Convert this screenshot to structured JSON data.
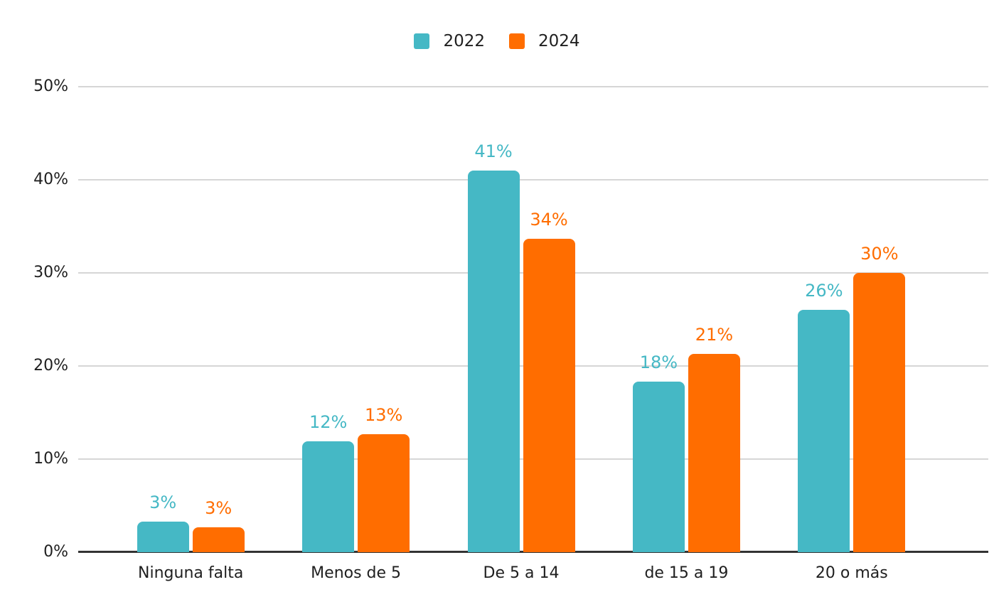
{
  "chart_data": {
    "type": "bar",
    "title": "",
    "xlabel": "",
    "ylabel": "",
    "categories": [
      "Ninguna falta",
      "Menos de 5",
      "De 5 a 14",
      "de 15 a 19",
      "20 o más"
    ],
    "series": [
      {
        "name": "2022",
        "color": "#45B8C5",
        "values": [
          3.3,
          11.9,
          41,
          18.3,
          26
        ],
        "labels": [
          "3%",
          "12%",
          "41%",
          "18%",
          "26%"
        ]
      },
      {
        "name": "2024",
        "color": "#FF6D00",
        "values": [
          2.7,
          12.7,
          33.7,
          21.3,
          30
        ],
        "labels": [
          "3%",
          "13%",
          "34%",
          "21%",
          "30%"
        ]
      }
    ],
    "ylim": [
      0,
      50
    ],
    "yticks": [
      {
        "value": 0,
        "label": "0%"
      },
      {
        "value": 10,
        "label": "10%"
      },
      {
        "value": 20,
        "label": "20%"
      },
      {
        "value": 30,
        "label": "30%"
      },
      {
        "value": 40,
        "label": "40%"
      },
      {
        "value": 50,
        "label": "50%"
      }
    ],
    "grid": true,
    "legend_position": "top-center"
  },
  "colors": {
    "background": "#ffffff",
    "gridline": "#d6d6d6",
    "axis_line": "#333333",
    "text": "#1f1f1f"
  }
}
